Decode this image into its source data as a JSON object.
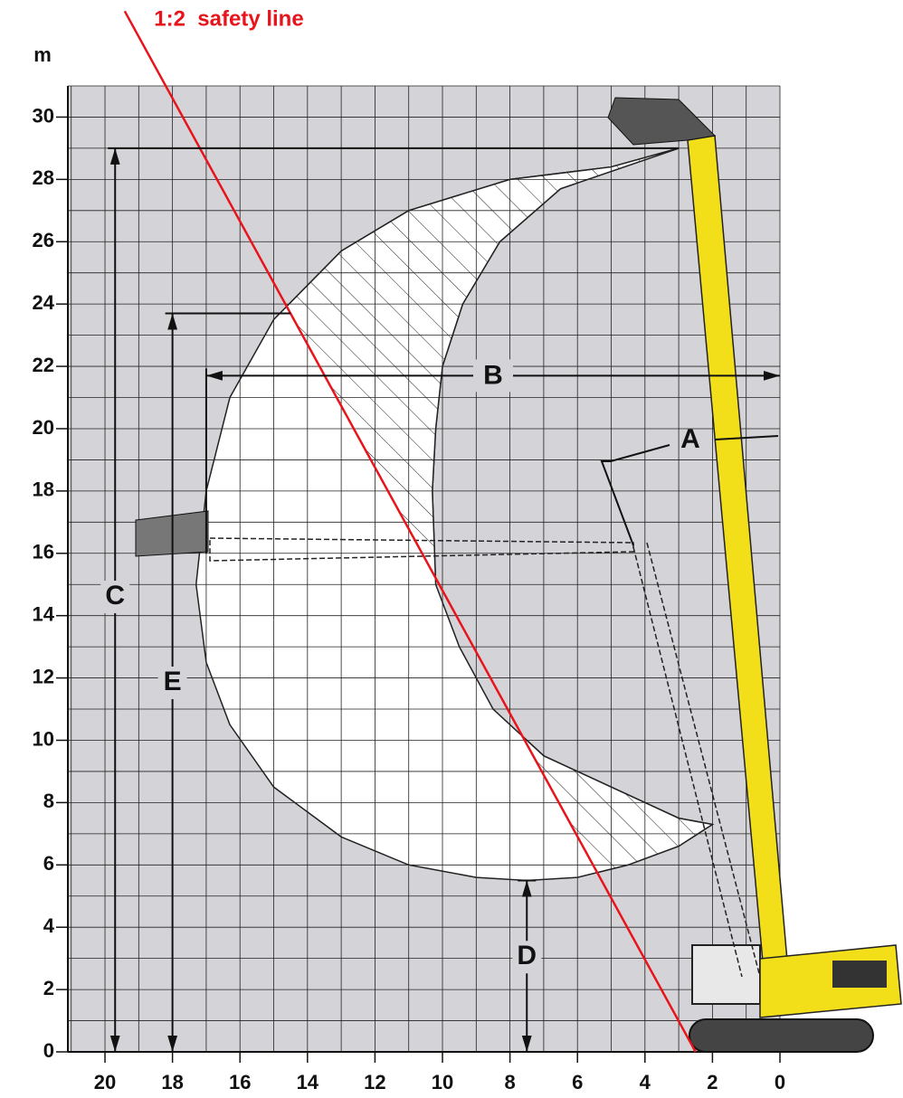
{
  "chart_data": {
    "type": "working-range",
    "title": "1:2  safety line",
    "y_label": "m",
    "xlim": [
      21.1,
      0
    ],
    "ylim": [
      0,
      31
    ],
    "xticks": [
      20,
      18,
      16,
      14,
      12,
      10,
      8,
      6,
      4,
      2,
      0
    ],
    "yticks": [
      0,
      2,
      4,
      6,
      8,
      10,
      12,
      14,
      16,
      18,
      20,
      22,
      24,
      26,
      28,
      30
    ],
    "grid": true,
    "safety_line": {
      "color": "#e8141b",
      "x": [
        2.5,
        18.2
      ],
      "y": [
        0,
        31
      ]
    },
    "working_envelope": {
      "x": [
        3,
        5,
        8,
        11,
        13,
        15,
        16.3,
        17,
        17.3,
        17,
        16.3,
        15,
        13,
        11,
        9,
        7.5,
        6,
        4.5,
        3,
        2,
        3,
        5,
        7,
        8.5,
        9.5,
        10.2,
        10.3,
        10.2,
        10,
        9.4,
        8.3,
        6.5
      ],
      "y": [
        29,
        28.4,
        28,
        27,
        25.7,
        23.5,
        21,
        18,
        15,
        12.5,
        10.5,
        8.5,
        6.9,
        6,
        5.6,
        5.5,
        5.6,
        6,
        6.6,
        7.3,
        7.5,
        8.5,
        9.5,
        11,
        13,
        15,
        18,
        20,
        22,
        24,
        26,
        27.7
      ]
    },
    "dimensions": [
      {
        "label": "A"
      },
      {
        "label": "B",
        "value": 17,
        "y": 21.7
      },
      {
        "label": "C",
        "value": 29,
        "x": 19.7
      },
      {
        "label": "D",
        "value": 5.5,
        "x": 7.5
      },
      {
        "label": "E",
        "value": 23.7,
        "x": 18
      }
    ]
  }
}
